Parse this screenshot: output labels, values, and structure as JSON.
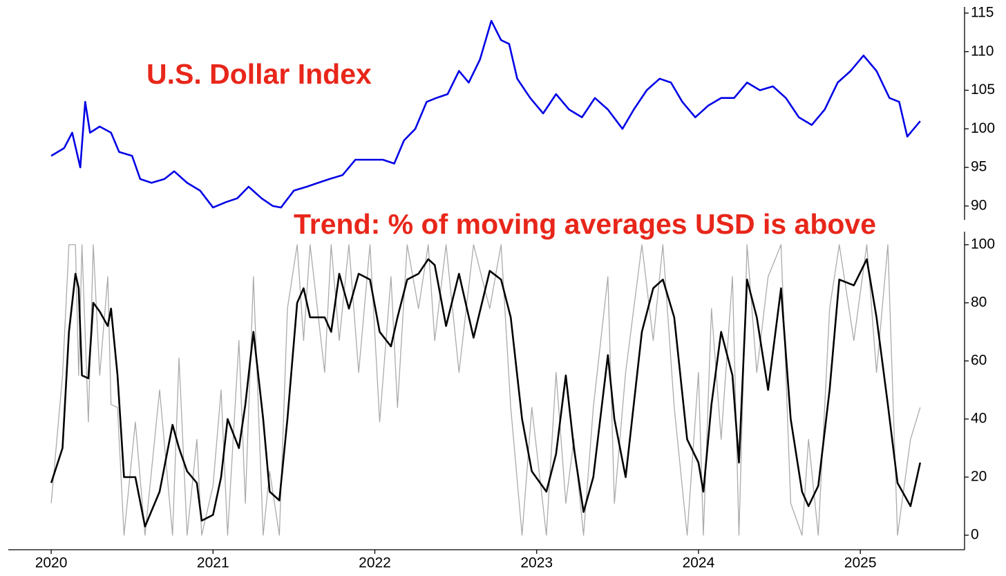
{
  "chart_data": [
    {
      "type": "line",
      "title": "U.S. Dollar Index",
      "color": "#0000e6",
      "x": [
        2020.0,
        2020.08,
        2020.13,
        2020.18,
        2020.21,
        2020.24,
        2020.3,
        2020.37,
        2020.42,
        2020.5,
        2020.55,
        2020.62,
        2020.7,
        2020.76,
        2020.84,
        2020.92,
        2021.0,
        2021.08,
        2021.15,
        2021.22,
        2021.3,
        2021.37,
        2021.42,
        2021.5,
        2021.58,
        2021.65,
        2021.72,
        2021.8,
        2021.88,
        2021.96,
        2022.05,
        2022.12,
        2022.18,
        2022.25,
        2022.32,
        2022.38,
        2022.45,
        2022.52,
        2022.58,
        2022.65,
        2022.72,
        2022.78,
        2022.83,
        2022.88,
        2022.96,
        2023.04,
        2023.12,
        2023.2,
        2023.28,
        2023.36,
        2023.44,
        2023.53,
        2023.6,
        2023.68,
        2023.76,
        2023.83,
        2023.9,
        2023.98,
        2024.06,
        2024.14,
        2024.22,
        2024.3,
        2024.38,
        2024.46,
        2024.54,
        2024.62,
        2024.7,
        2024.78,
        2024.86,
        2024.94,
        2025.02,
        2025.1,
        2025.18,
        2025.24,
        2025.29,
        2025.33,
        2025.37
      ],
      "values": [
        96.5,
        97.5,
        99.5,
        95,
        103.5,
        99.5,
        100.3,
        99.5,
        97,
        96.5,
        93.5,
        93,
        93.5,
        94.5,
        93,
        92,
        89.8,
        90.5,
        91,
        92.5,
        91,
        90,
        89.8,
        92,
        92.5,
        93,
        93.5,
        94,
        96,
        96,
        96,
        95.5,
        98.5,
        100,
        103.5,
        104,
        104.5,
        107.5,
        106,
        109,
        114,
        111.5,
        111,
        106.5,
        104,
        102,
        104.5,
        102.5,
        101.5,
        104,
        102.5,
        100,
        102.5,
        105,
        106.5,
        106,
        103.5,
        101.5,
        103,
        104,
        104,
        106,
        105,
        105.5,
        104,
        101.5,
        100.5,
        102.5,
        106,
        107.5,
        109.5,
        107.5,
        104,
        103.5,
        99,
        100,
        101
      ],
      "xlim": [
        2019.735,
        2025.644
      ],
      "ylim": [
        88.2,
        115.8
      ],
      "yticks": [
        90,
        95,
        100,
        105,
        110,
        115
      ]
    },
    {
      "type": "line",
      "title": "Trend: % of moving averages USD is above",
      "x": [
        2020.0,
        2020.07,
        2020.11,
        2020.15,
        2020.17,
        2020.19,
        2020.23,
        2020.26,
        2020.3,
        2020.35,
        2020.37,
        2020.41,
        2020.45,
        2020.52,
        2020.58,
        2020.67,
        2020.75,
        2020.79,
        2020.84,
        2020.9,
        2020.93,
        2021.0,
        2021.05,
        2021.09,
        2021.16,
        2021.2,
        2021.25,
        2021.31,
        2021.35,
        2021.41,
        2021.46,
        2021.52,
        2021.56,
        2021.6,
        2021.69,
        2021.73,
        2021.78,
        2021.84,
        2021.9,
        2021.97,
        2022.03,
        2022.1,
        2022.14,
        2022.2,
        2022.27,
        2022.33,
        2022.37,
        2022.44,
        2022.52,
        2022.61,
        2022.71,
        2022.78,
        2022.84,
        2022.91,
        2022.97,
        2023.06,
        2023.12,
        2023.18,
        2023.23,
        2023.29,
        2023.35,
        2023.44,
        2023.48,
        2023.55,
        2023.65,
        2023.72,
        2023.78,
        2023.85,
        2023.93,
        2024.0,
        2024.03,
        2024.08,
        2024.14,
        2024.21,
        2024.25,
        2024.3,
        2024.36,
        2024.43,
        2024.51,
        2024.57,
        2024.64,
        2024.68,
        2024.74,
        2024.81,
        2024.87,
        2024.96,
        2025.04,
        2025.1,
        2025.17,
        2025.23,
        2025.31,
        2025.37
      ],
      "series": [
        {
          "color": "#aaaaaa",
          "values": [
            11,
            55,
            100,
            100,
            55,
            100,
            39,
            100,
            55,
            89,
            45,
            44,
            0,
            39,
            0,
            50,
            0,
            61,
            0,
            33,
            0,
            17,
            50,
            0,
            67,
            11,
            89,
            0,
            22,
            0,
            78,
            100,
            67,
            100,
            56,
            100,
            67,
            100,
            56,
            100,
            39,
            89,
            44,
            100,
            78,
            100,
            67,
            100,
            56,
            100,
            78,
            100,
            44,
            0,
            44,
            0,
            56,
            11,
            33,
            0,
            44,
            89,
            11,
            56,
            100,
            67,
            100,
            44,
            0,
            56,
            0,
            78,
            33,
            89,
            0,
            100,
            56,
            89,
            100,
            11,
            0,
            33,
            0,
            78,
            100,
            67,
            100,
            56,
            100,
            0,
            33,
            44
          ]
        },
        {
          "color": "#000000",
          "values": [
            18,
            30,
            70,
            90,
            85,
            55,
            54,
            80,
            77,
            72,
            78,
            55,
            20,
            20,
            3,
            15,
            38,
            30,
            22,
            18,
            5,
            7,
            20,
            40,
            30,
            45,
            70,
            40,
            15,
            12,
            40,
            80,
            85,
            75,
            75,
            70,
            90,
            78,
            90,
            88,
            70,
            65,
            75,
            88,
            90,
            95,
            93,
            72,
            90,
            68,
            91,
            88,
            75,
            40,
            22,
            15,
            28,
            55,
            30,
            8,
            20,
            62,
            40,
            20,
            70,
            85,
            88,
            75,
            33,
            25,
            15,
            45,
            70,
            55,
            25,
            88,
            75,
            50,
            85,
            40,
            15,
            10,
            17,
            50,
            88,
            86,
            95,
            75,
            45,
            18,
            10,
            25
          ]
        }
      ],
      "xlim": [
        2019.735,
        2025.644
      ],
      "ylim": [
        -5,
        104.5
      ],
      "yticks": [
        0,
        20,
        40,
        60,
        80,
        100
      ],
      "xticks": [
        2020,
        2021,
        2022,
        2023,
        2024,
        2025
      ]
    }
  ]
}
